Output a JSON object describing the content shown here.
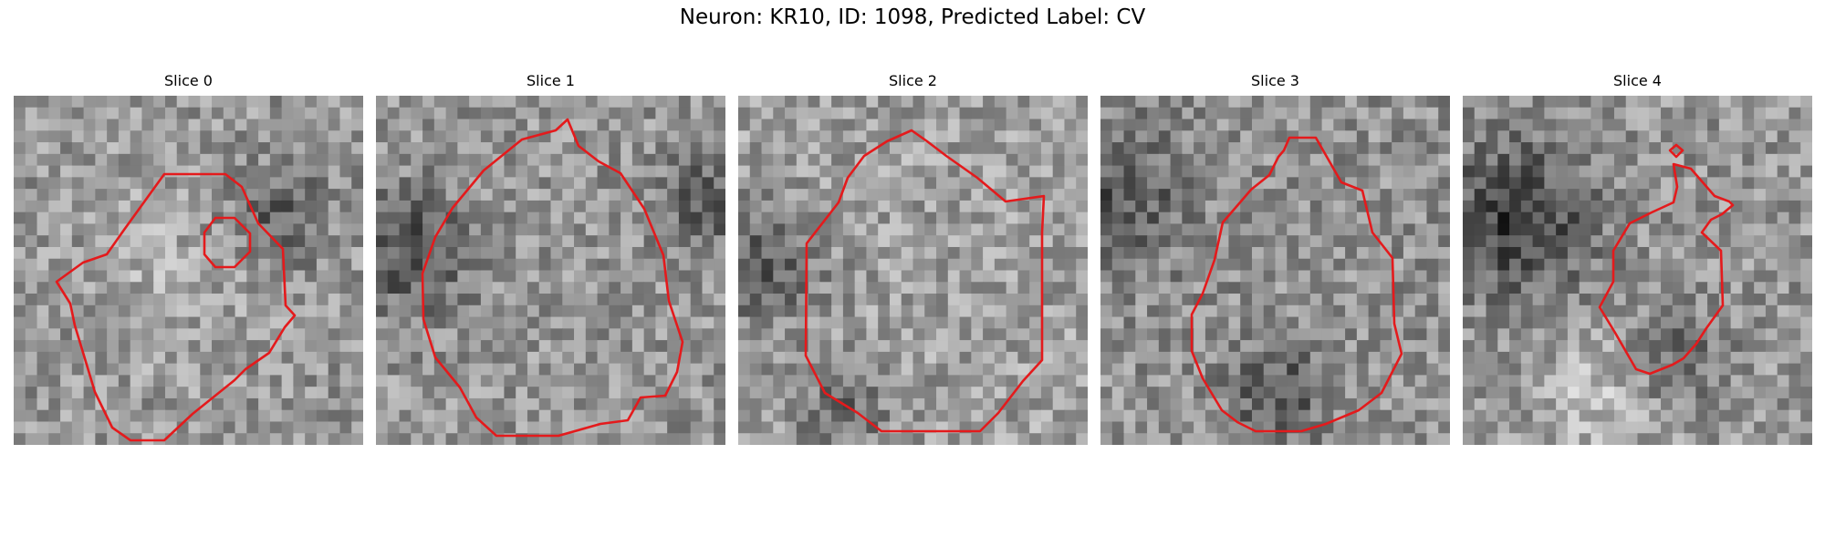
{
  "figure": {
    "title": "Neuron: KR10, ID: 1098, Predicted Label: CV"
  },
  "colors": {
    "contour": "#e41a1c",
    "background": "#ffffff"
  },
  "panels": [
    {
      "title": "Slice 0"
    },
    {
      "title": "Slice 1"
    },
    {
      "title": "Slice 2"
    },
    {
      "title": "Slice 3"
    },
    {
      "title": "Slice 4"
    }
  ]
}
